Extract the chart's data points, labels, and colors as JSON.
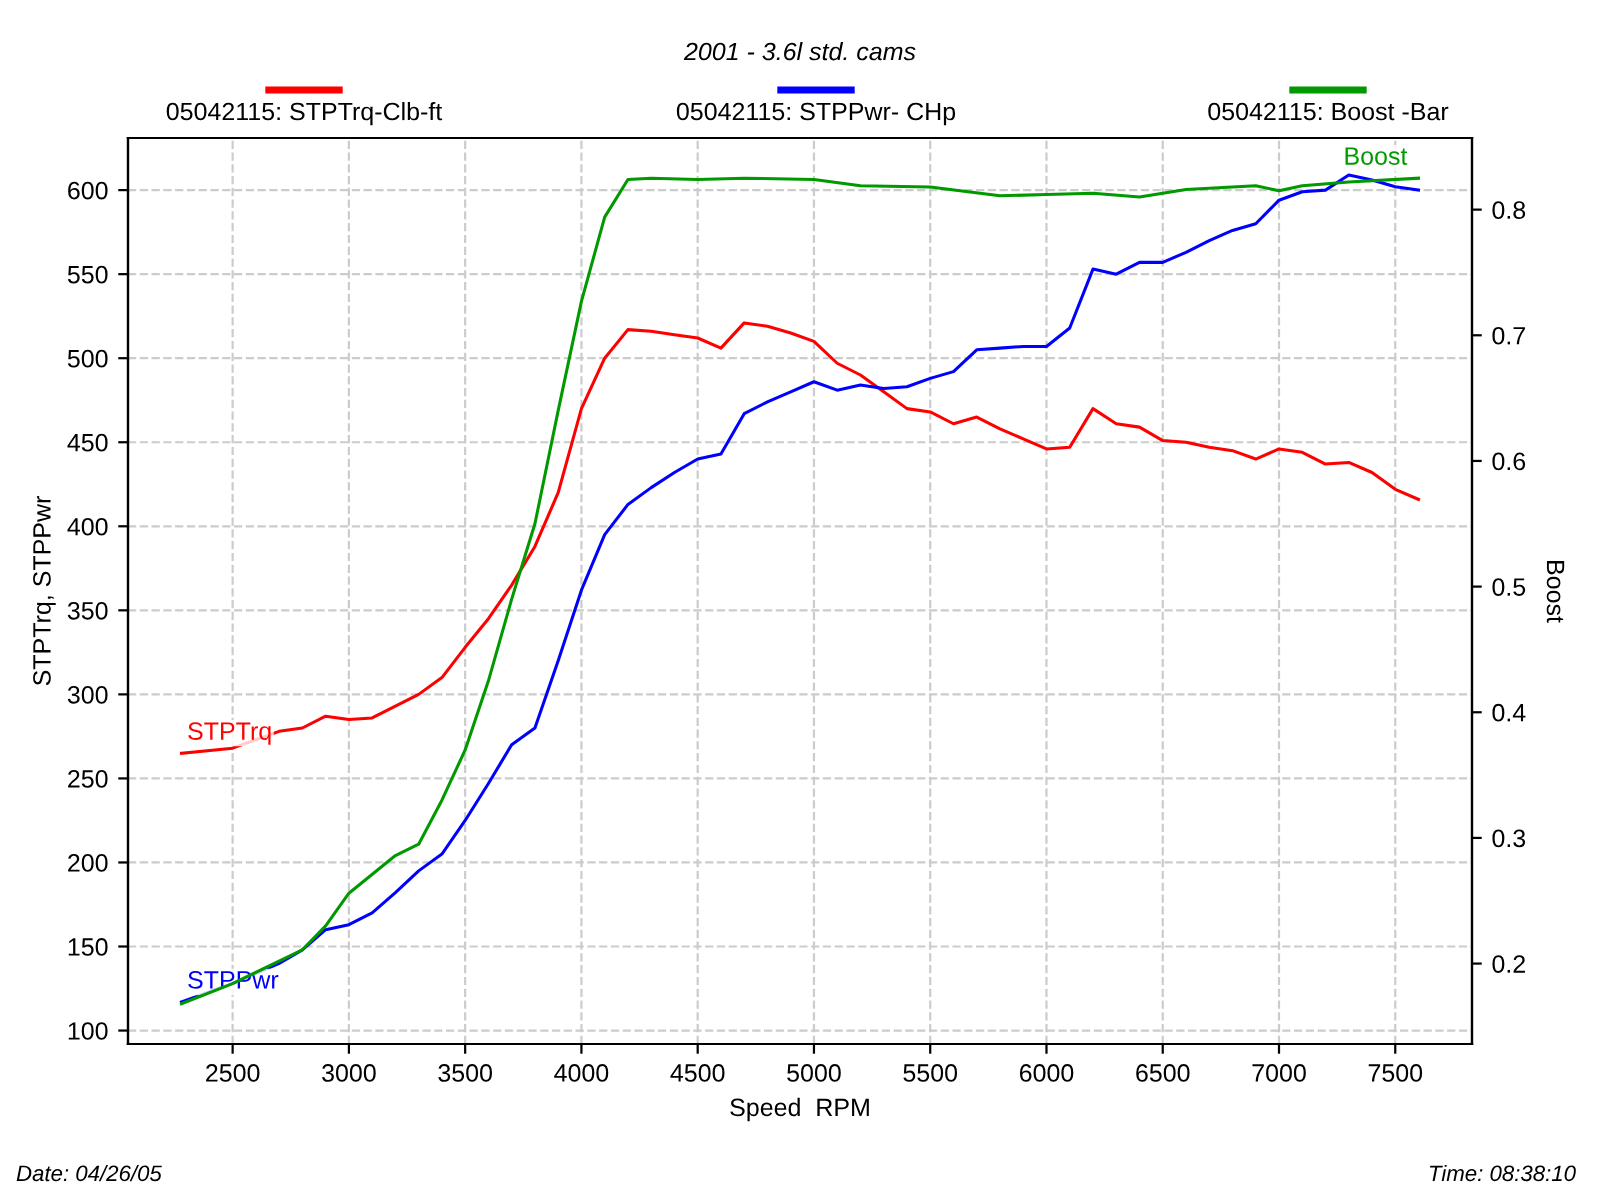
{
  "chart_data": {
    "type": "line",
    "subtitle": "2001 - 3.6l std. cams",
    "xlabel": "Speed  RPM",
    "ylabel": "STPTrq, STPPwr",
    "y2label": "Boost",
    "xlim": [
      2050,
      7830
    ],
    "xticks": [
      2500,
      3000,
      3500,
      4000,
      4500,
      5000,
      5500,
      6000,
      6500,
      7000,
      7500
    ],
    "ylim": [
      92,
      631
    ],
    "yticks": [
      100,
      150,
      200,
      250,
      300,
      350,
      400,
      450,
      500,
      550,
      600
    ],
    "y2lim": [
      0.136,
      0.857
    ],
    "y2ticks": [
      0.2,
      0.3,
      0.4,
      0.5,
      0.6,
      0.7,
      0.8
    ],
    "grid": true,
    "legend": "top",
    "line_style": "solid",
    "marker": "none",
    "series": [
      {
        "name": "05042115: STPTrq-Clb-ft",
        "color": "#ff0000",
        "x": [
          2280,
          2500,
          2700,
          2800,
          2900,
          3000,
          3100,
          3200,
          3300,
          3400,
          3500,
          3600,
          3700,
          3800,
          3900,
          4000,
          4100,
          4200,
          4300,
          4400,
          4500,
          4600,
          4700,
          4800,
          4900,
          5000,
          5100,
          5200,
          5300,
          5400,
          5500,
          5600,
          5700,
          5800,
          5900,
          6000,
          6100,
          6200,
          6300,
          6400,
          6500,
          6600,
          6700,
          6800,
          6900,
          7000,
          7100,
          7200,
          7300,
          7400,
          7500,
          7600
        ],
        "values": [
          265,
          268,
          278,
          280,
          287,
          285,
          286,
          293,
          300,
          310,
          328,
          345,
          365,
          388,
          420,
          470,
          500,
          517,
          516,
          514,
          512,
          506,
          521,
          519,
          515,
          510,
          497,
          490,
          480,
          470,
          468,
          461,
          465,
          458,
          452,
          446,
          447,
          470,
          461,
          459,
          451,
          450,
          447,
          445,
          440,
          446,
          444,
          437,
          438,
          432,
          422,
          416
        ]
      },
      {
        "name": "05042115: STPPwr- CHp",
        "color": "#0000ff",
        "x": [
          2280,
          2500,
          2700,
          2800,
          2900,
          3000,
          3100,
          3200,
          3300,
          3400,
          3500,
          3600,
          3700,
          3800,
          3900,
          4000,
          4100,
          4200,
          4300,
          4400,
          4500,
          4600,
          4700,
          4800,
          4900,
          5000,
          5100,
          5200,
          5300,
          5400,
          5500,
          5600,
          5700,
          5800,
          5900,
          6000,
          6100,
          6200,
          6300,
          6400,
          6500,
          6600,
          6700,
          6800,
          6900,
          7000,
          7100,
          7200,
          7300,
          7400,
          7500,
          7600
        ],
        "values": [
          117,
          128,
          140,
          148,
          160,
          163,
          170,
          182,
          195,
          205,
          225,
          247,
          270,
          280,
          320,
          362,
          395,
          413,
          423,
          432,
          440,
          443,
          467,
          474,
          480,
          486,
          481,
          484,
          482,
          483,
          488,
          492,
          505,
          506,
          507,
          507,
          518,
          553,
          550,
          557,
          557,
          563,
          570,
          576,
          580,
          594,
          599,
          600,
          609,
          606,
          602,
          600
        ]
      },
      {
        "name": "05042115: Boost -Bar",
        "color": "#009900",
        "axis": "y2",
        "x": [
          2280,
          2500,
          2800,
          2900,
          3000,
          3200,
          3300,
          3400,
          3500,
          3600,
          3700,
          3800,
          3900,
          4000,
          4100,
          4200,
          4300,
          4500,
          4700,
          5000,
          5200,
          5500,
          5800,
          6000,
          6200,
          6400,
          6600,
          6900,
          7000,
          7100,
          7300,
          7600
        ],
        "values": [
          0.168,
          0.184,
          0.211,
          0.23,
          0.256,
          0.286,
          0.295,
          0.33,
          0.37,
          0.425,
          0.49,
          0.55,
          0.64,
          0.727,
          0.794,
          0.824,
          0.825,
          0.824,
          0.825,
          0.824,
          0.819,
          0.818,
          0.811,
          0.812,
          0.813,
          0.81,
          0.816,
          0.819,
          0.815,
          0.819,
          0.822,
          0.825
        ]
      }
    ],
    "annotations": [
      "STPTrq",
      "STPPwr",
      "Boost",
      "Date: 04/26/05",
      "Time: 08:38:10"
    ]
  }
}
